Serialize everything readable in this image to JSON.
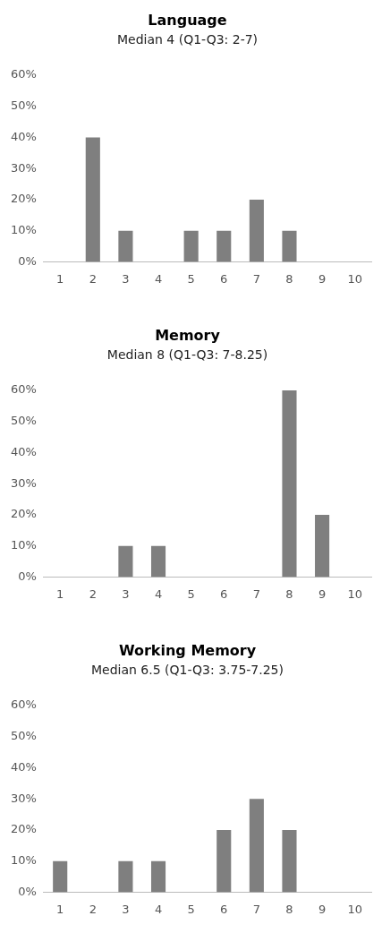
{
  "chart_data": [
    {
      "type": "bar",
      "title": "Language",
      "subtitle": "Median 4 (Q1-Q3: 2-7)",
      "categories": [
        "1",
        "2",
        "3",
        "4",
        "5",
        "6",
        "7",
        "8",
        "9",
        "10"
      ],
      "values": [
        0,
        40,
        10,
        0,
        10,
        10,
        20,
        10,
        0,
        0
      ],
      "color": "#7f7f7f",
      "ylim": [
        0,
        60
      ],
      "yticks": [
        {
          "value": 0,
          "label": "0%"
        },
        {
          "value": 10,
          "label": "10%"
        },
        {
          "value": 20,
          "label": "20%"
        },
        {
          "value": 30,
          "label": "30%"
        },
        {
          "value": 40,
          "label": "40%"
        },
        {
          "value": 50,
          "label": "50%"
        },
        {
          "value": 60,
          "label": "60%"
        }
      ],
      "grid": false,
      "legend": false
    },
    {
      "type": "bar",
      "title": "Memory",
      "subtitle": "Median 8 (Q1-Q3: 7-8.25)",
      "categories": [
        "1",
        "2",
        "3",
        "4",
        "5",
        "6",
        "7",
        "8",
        "9",
        "10"
      ],
      "values": [
        0,
        0,
        10,
        10,
        0,
        0,
        0,
        60,
        20,
        0
      ],
      "color": "#7f7f7f",
      "ylim": [
        0,
        60
      ],
      "yticks": [
        {
          "value": 0,
          "label": "0%"
        },
        {
          "value": 10,
          "label": "10%"
        },
        {
          "value": 20,
          "label": "20%"
        },
        {
          "value": 30,
          "label": "30%"
        },
        {
          "value": 40,
          "label": "40%"
        },
        {
          "value": 50,
          "label": "50%"
        },
        {
          "value": 60,
          "label": "60%"
        }
      ],
      "grid": false,
      "legend": false
    },
    {
      "type": "bar",
      "title": "Working Memory",
      "subtitle": "Median 6.5 (Q1-Q3: 3.75-7.25)",
      "categories": [
        "1",
        "2",
        "3",
        "4",
        "5",
        "6",
        "7",
        "8",
        "9",
        "10"
      ],
      "values": [
        10,
        0,
        10,
        10,
        0,
        20,
        30,
        20,
        0,
        0
      ],
      "color": "#7f7f7f",
      "ylim": [
        0,
        60
      ],
      "yticks": [
        {
          "value": 0,
          "label": "0%"
        },
        {
          "value": 10,
          "label": "10%"
        },
        {
          "value": 20,
          "label": "20%"
        },
        {
          "value": 30,
          "label": "30%"
        },
        {
          "value": 40,
          "label": "40%"
        },
        {
          "value": 50,
          "label": "50%"
        },
        {
          "value": 60,
          "label": "60%"
        }
      ],
      "grid": false,
      "legend": false
    }
  ]
}
